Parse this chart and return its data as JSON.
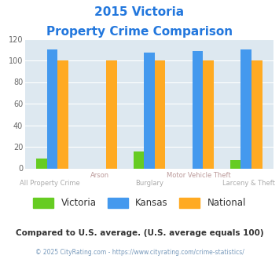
{
  "title_line1": "2015 Victoria",
  "title_line2": "Property Crime Comparison",
  "title_color": "#2277dd",
  "categories": [
    "All Property Crime",
    "Arson",
    "Burglary",
    "Motor Vehicle Theft",
    "Larceny & Theft"
  ],
  "victoria": [
    9,
    0,
    16,
    0,
    8
  ],
  "kansas": [
    110,
    0,
    107,
    109,
    110
  ],
  "national": [
    100,
    100,
    100,
    100,
    100
  ],
  "victoria_color": "#66cc22",
  "kansas_color": "#4499ee",
  "national_color": "#ffaa22",
  "ylim": [
    0,
    120
  ],
  "yticks": [
    0,
    20,
    40,
    60,
    80,
    100,
    120
  ],
  "bg_color": "#dde8f0",
  "xlabel_color_even": "#aaaaaa",
  "xlabel_color_odd": "#bb9999",
  "legend_labels": [
    "Victoria",
    "Kansas",
    "National"
  ],
  "footnote1": "Compared to U.S. average. (U.S. average equals 100)",
  "footnote2": "© 2025 CityRating.com - https://www.cityrating.com/crime-statistics/",
  "footnote1_color": "#333333",
  "footnote2_color": "#7799bb"
}
